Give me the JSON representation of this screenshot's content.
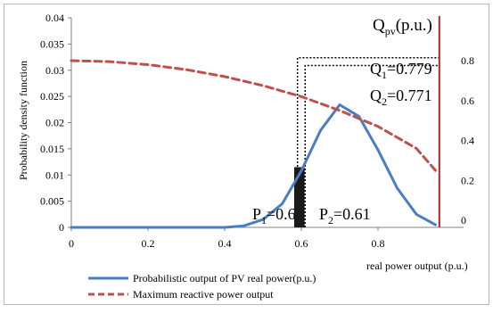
{
  "chart_data": {
    "type": "line",
    "xlabel": "real power output (p.u.)",
    "ylabel": "Probability density function",
    "ylabel_right": "Q",
    "ylabel_right_sub": "pv",
    "ylabel_right_unit": "(p.u.)",
    "xlim": [
      0,
      1.0
    ],
    "ylim": [
      0,
      0.04
    ],
    "ylim_right": [
      0,
      0.9
    ],
    "x_ticks": [
      "0",
      "0.2",
      "0.4",
      "0.6",
      "0.8"
    ],
    "y_ticks": [
      "0",
      "0.005",
      "0.01",
      "0.015",
      "0.02",
      "0.025",
      "0.03",
      "0.035",
      "0.04"
    ],
    "y_right_ticks": [
      "0",
      "0.2",
      "0.4",
      "0.6",
      "0.8"
    ],
    "legend_position": "bottom",
    "grid": false,
    "series": [
      {
        "name": "Probabilistic output of PV real power(p.u.)",
        "axis": "left",
        "color": "#4a7ec4",
        "style": "solid",
        "x": [
          0,
          0.2,
          0.4,
          0.45,
          0.5,
          0.55,
          0.6,
          0.65,
          0.7,
          0.75,
          0.8,
          0.85,
          0.9,
          0.95
        ],
        "y": [
          0,
          0,
          0,
          0.0003,
          0.0015,
          0.0045,
          0.0108,
          0.0185,
          0.0234,
          0.0212,
          0.0148,
          0.0075,
          0.0025,
          0.0005
        ]
      },
      {
        "name": "Maximum reactive power output",
        "axis": "right",
        "color": "#c0504d",
        "style": "dashed",
        "x": [
          0,
          0.1,
          0.2,
          0.3,
          0.4,
          0.5,
          0.6,
          0.7,
          0.8,
          0.9,
          0.95
        ],
        "y": [
          0.8,
          0.795,
          0.78,
          0.755,
          0.72,
          0.675,
          0.62,
          0.55,
          0.47,
          0.36,
          0.25
        ]
      }
    ],
    "bar": {
      "x": 0.6,
      "width": 0.027,
      "y": 0.0115,
      "color": "#1a1a1a"
    },
    "vertical_line": {
      "x": 0.96,
      "color": "#b22222"
    },
    "annotations": {
      "q1": {
        "prefix": "Q",
        "sub": "1",
        "suffix": "=0.779"
      },
      "q2": {
        "prefix": "Q",
        "sub": "2",
        "suffix": "=0.771"
      },
      "p1": {
        "prefix": "P",
        "sub": "1",
        "suffix": "=0.6"
      },
      "p2": {
        "prefix": "P",
        "sub": "2",
        "suffix": "=0.61"
      }
    },
    "reference_lines": {
      "q1": {
        "x_from": 0.59,
        "x_to": 0.96,
        "y_right": 0.779
      },
      "q2": {
        "x_from": 0.61,
        "x_to": 0.96,
        "y_right": 0.771
      }
    }
  }
}
